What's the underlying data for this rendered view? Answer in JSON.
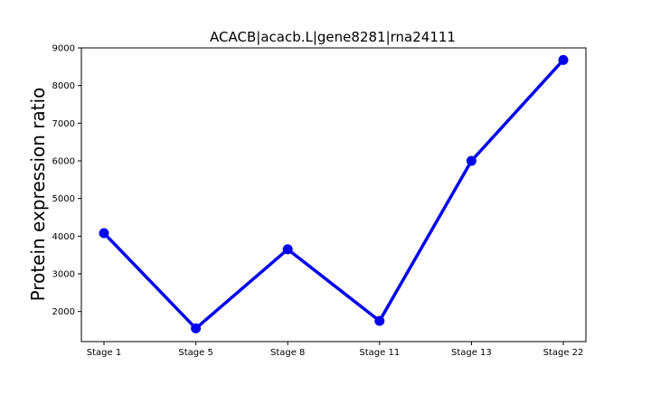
{
  "chart_data": {
    "type": "line",
    "title": "ACACB|acacb.L|gene8281|rna24111",
    "xlabel": "",
    "ylabel": "Protein expression ratio",
    "categories": [
      "Stage 1",
      "Stage 5",
      "Stage 8",
      "Stage 11",
      "Stage 13",
      "Stage 22"
    ],
    "series": [
      {
        "values": [
          4080,
          1550,
          3650,
          1750,
          6000,
          8680
        ],
        "color": "#0000ee"
      }
    ],
    "ylim": [
      1200,
      9000
    ],
    "yticks": [
      2000,
      3000,
      4000,
      5000,
      6000,
      7000,
      8000,
      9000
    ],
    "grid": false,
    "legend": "none"
  }
}
